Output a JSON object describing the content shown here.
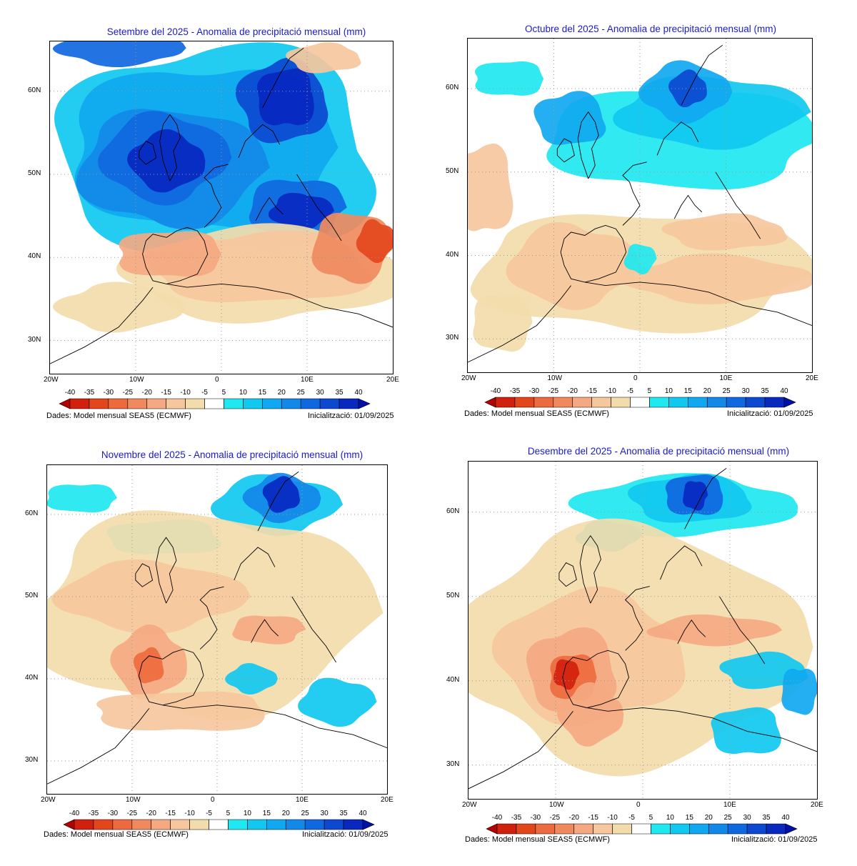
{
  "panels": [
    {
      "id": "sep",
      "title": "Setembre del 2025 - Anomalia de precipitació mensual (mm)",
      "month": "Setembre",
      "pattern": "wet-north-dry-south"
    },
    {
      "id": "oct",
      "title": "Octubre del 2025 - Anomalia de precipitació mensual (mm)",
      "month": "Octubre",
      "pattern": "moderate-wet-north-dry-south"
    },
    {
      "id": "nov",
      "title": "Novembre del 2025 - Anomalia de precipitació mensual (mm)",
      "month": "Novembre",
      "pattern": "dry-widespread-wet-norway"
    },
    {
      "id": "dec",
      "title": "Desembre del 2025 - Anomalia de precipitació mensual (mm)",
      "month": "Desembre",
      "pattern": "dry-iberia-wet-norway"
    }
  ],
  "axes": {
    "x_ticks": [
      "20W",
      "10W",
      "0",
      "10E",
      "20E"
    ],
    "y_ticks": [
      "60N",
      "50N",
      "40N",
      "30N"
    ]
  },
  "legend": {
    "labels": [
      "-40",
      "-35",
      "-30",
      "-25",
      "-20",
      "-15",
      "-10",
      "-5",
      "5",
      "10",
      "15",
      "20",
      "25",
      "30",
      "35",
      "40"
    ],
    "colors": [
      "#b40000",
      "#d2200e",
      "#e4461c",
      "#ed6a3e",
      "#f08a5e",
      "#f4a982",
      "#f6c79d",
      "#f3dcac",
      "#ffffff",
      "#20e8f0",
      "#10c8f0",
      "#10a8f0",
      "#1288e8",
      "#1068e0",
      "#0c48d0",
      "#0828c0",
      "#0010a8"
    ]
  },
  "footer": {
    "source": "Dades: Model mensual SEAS5 (ECMWF)",
    "init": "Inicialització: 01/09/2025"
  },
  "chart_data": {
    "type": "heatmap",
    "variable": "Anomalia de precipitació mensual (mm)",
    "lon_range": [
      -20,
      20
    ],
    "lat_range": [
      26,
      66
    ],
    "levels": [
      -40,
      -35,
      -30,
      -25,
      -20,
      -15,
      -10,
      -5,
      5,
      10,
      15,
      20,
      25,
      30,
      35,
      40
    ]
  }
}
